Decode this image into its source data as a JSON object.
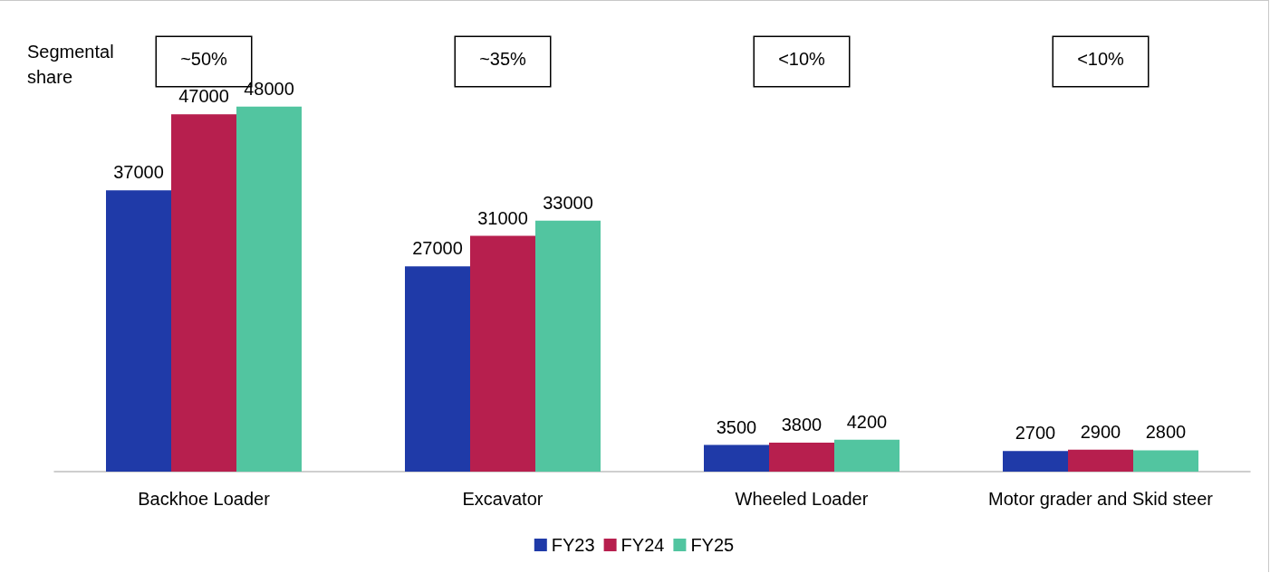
{
  "chart_data": {
    "type": "bar",
    "categories": [
      "Backhoe Loader",
      "Excavator",
      "Wheeled Loader",
      "Motor grader and Skid steer"
    ],
    "series": [
      {
        "name": "FY23",
        "color": "#1f3aa8",
        "values": [
          37000,
          27000,
          3500,
          2700
        ]
      },
      {
        "name": "FY24",
        "color": "#b71f4e",
        "values": [
          47000,
          31000,
          3800,
          2900
        ]
      },
      {
        "name": "FY25",
        "color": "#52c5a0",
        "values": [
          48000,
          33000,
          4200,
          2800
        ]
      }
    ],
    "data_labels": true,
    "legend": "bottom",
    "annotations": [
      "Segmental share",
      "~50%",
      "~35%",
      "<10%",
      "<10%"
    ]
  }
}
